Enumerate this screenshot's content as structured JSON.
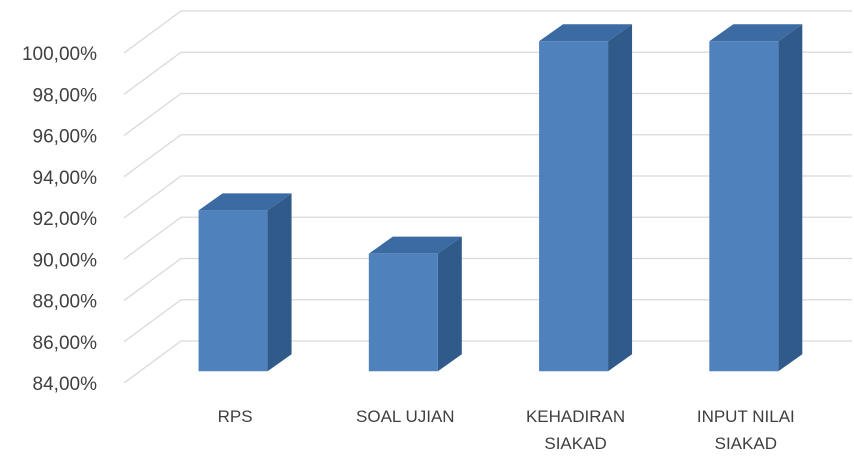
{
  "chart_data": {
    "type": "bar",
    "style": "3d-column",
    "categories": [
      [
        "RPS"
      ],
      [
        "SOAL UJIAN"
      ],
      [
        "KEHADIRAN",
        "SIAKAD"
      ],
      [
        "INPUT NILAI",
        "SIAKAD"
      ]
    ],
    "values": [
      91.8,
      89.7,
      100.0,
      100.0
    ],
    "y_ticks": [
      "84,00%",
      "86,00%",
      "88,00%",
      "90,00%",
      "92,00%",
      "94,00%",
      "96,00%",
      "98,00%",
      "100,00%"
    ],
    "ylim": [
      84,
      100
    ],
    "grid": true,
    "legend": "none",
    "colors": {
      "bar_front": "#4f81bd",
      "bar_side": "#2f5a8a",
      "bar_top": "#3c6aa3",
      "grid": "#d9d9d9",
      "text": "#404040"
    }
  }
}
